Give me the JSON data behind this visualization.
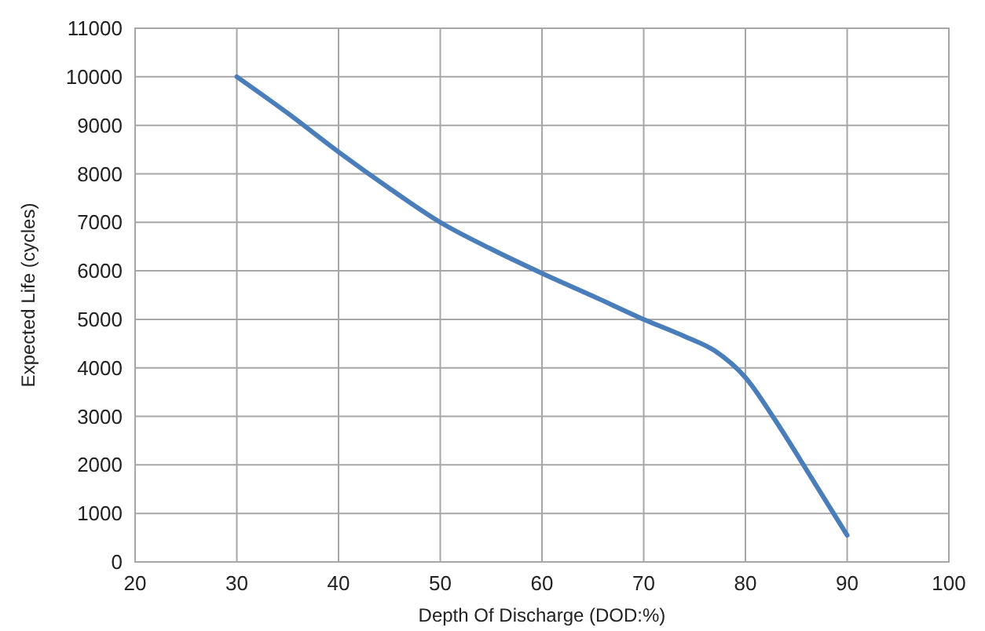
{
  "chart_data": {
    "type": "line",
    "xlabel": "Depth Of Discharge (DOD:%)",
    "ylabel": "Expected Life (cycles)",
    "x": [
      30,
      35,
      40,
      45,
      50,
      55,
      60,
      65,
      70,
      74,
      77,
      80,
      83,
      86,
      90
    ],
    "series": [
      {
        "color": "#4a7ebb",
        "values": [
          10000,
          9250,
          8450,
          7700,
          7000,
          6450,
          5950,
          5480,
          5000,
          4650,
          4350,
          3800,
          2900,
          1900,
          550
        ]
      }
    ],
    "xlim": [
      20,
      100
    ],
    "xticks": [
      20,
      30,
      40,
      50,
      60,
      70,
      80,
      90,
      100
    ],
    "ylim": [
      0,
      11000
    ],
    "yticks": [
      0,
      1000,
      2000,
      3000,
      4000,
      5000,
      6000,
      7000,
      8000,
      9000,
      10000,
      11000
    ],
    "grid": true,
    "marker": "none",
    "line_style": "solid"
  }
}
